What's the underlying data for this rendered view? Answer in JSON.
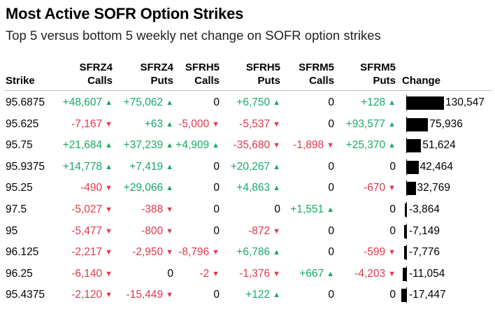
{
  "title": "Most Active SOFR Option Strikes",
  "subtitle": "Top 5 versus bottom 5 weekly net change on SOFR option strikes",
  "columns": [
    {
      "line1": "",
      "line2": "Strike"
    },
    {
      "line1": "SFRZ4",
      "line2": "Calls"
    },
    {
      "line1": "SFRZ4",
      "line2": "Puts"
    },
    {
      "line1": "SFRH5",
      "line2": "Calls"
    },
    {
      "line1": "SFRH5",
      "line2": "Puts"
    },
    {
      "line1": "SFRM5",
      "line2": "Calls"
    },
    {
      "line1": "SFRM5",
      "line2": "Puts"
    },
    {
      "line1": "",
      "line2": "Change"
    }
  ],
  "colors": {
    "positive": "#1aa867",
    "negative": "#e0384a",
    "bar": "#000000"
  },
  "icons": {
    "up": "▲",
    "down": "▼"
  },
  "chart_data": {
    "type": "table",
    "title": "Most Active SOFR Option Strikes",
    "subtitle": "Top 5 versus bottom 5 weekly net change on SOFR option strikes",
    "rows": [
      {
        "strike": "95.6875",
        "cells": [
          "+48,607",
          "+75,062",
          "0",
          "+6,750",
          "0",
          "+128"
        ],
        "change": 130547,
        "change_label": "130,547"
      },
      {
        "strike": "95.625",
        "cells": [
          "-7,167",
          "+63",
          "-5,000",
          "-5,537",
          "0",
          "+93,577"
        ],
        "change": 75936,
        "change_label": "75,936"
      },
      {
        "strike": "95.75",
        "cells": [
          "+21,684",
          "+37,239",
          "+4,909",
          "-35,680",
          "-1,898",
          "+25,370"
        ],
        "change": 51624,
        "change_label": "51,624"
      },
      {
        "strike": "95.9375",
        "cells": [
          "+14,778",
          "+7,419",
          "0",
          "+20,267",
          "0",
          "0"
        ],
        "change": 42464,
        "change_label": "42,464"
      },
      {
        "strike": "95.25",
        "cells": [
          "-490",
          "+29,066",
          "0",
          "+4,863",
          "0",
          "-670"
        ],
        "change": 32769,
        "change_label": "32,769"
      },
      {
        "strike": "97.5",
        "cells": [
          "-5,027",
          "-388",
          "0",
          "0",
          "+1,551",
          "0"
        ],
        "change": -3864,
        "change_label": "-3,864"
      },
      {
        "strike": "95",
        "cells": [
          "-5,477",
          "-800",
          "0",
          "-872",
          "0",
          "0"
        ],
        "change": -7149,
        "change_label": "-7,149"
      },
      {
        "strike": "96.125",
        "cells": [
          "-2,217",
          "-2,950",
          "-8,796",
          "+6,786",
          "0",
          "-599"
        ],
        "change": -7776,
        "change_label": "-7,776"
      },
      {
        "strike": "96.25",
        "cells": [
          "-6,140",
          "0",
          "-2",
          "-1,376",
          "+667",
          "-4,203"
        ],
        "change": -11054,
        "change_label": "-11,054"
      },
      {
        "strike": "95.4375",
        "cells": [
          "-2,120",
          "-15,449",
          "0",
          "+122",
          "0",
          "0"
        ],
        "change": -17447,
        "change_label": "-17,447"
      }
    ]
  }
}
